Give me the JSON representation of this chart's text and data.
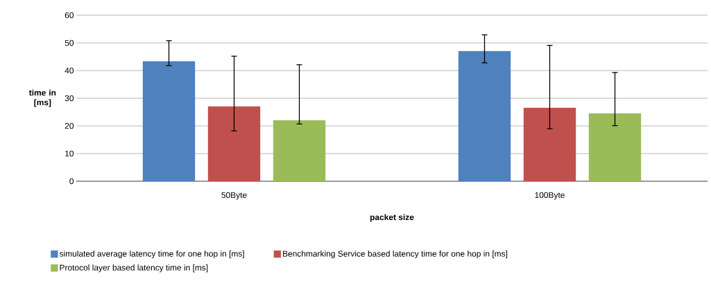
{
  "chart_data": {
    "type": "bar",
    "xlabel": "packet size",
    "ylabel": "time in [ms]",
    "categories": [
      "50Byte",
      "100Byte"
    ],
    "series": [
      {
        "name": "simulated average latency time for one hop in [ms]",
        "color": "#4f81bd",
        "values": [
          43.3,
          47
        ],
        "errors": [
          [
            41.8,
            50.8
          ],
          [
            42.8,
            52.9
          ]
        ]
      },
      {
        "name": "Benchmarking Service based latency time for one hop in [ms]",
        "color": "#c0504d",
        "values": [
          27,
          26.5
        ],
        "errors": [
          [
            18.2,
            45.2
          ],
          [
            19,
            49.1
          ]
        ]
      },
      {
        "name": "Protocol layer based latency time in [ms]",
        "color": "#9bbb59",
        "values": [
          22,
          24.5
        ],
        "errors": [
          [
            20.7,
            42.1
          ],
          [
            20.1,
            39.3
          ]
        ]
      }
    ],
    "ylim": [
      0,
      60
    ],
    "yticks": [
      0,
      10,
      20,
      30,
      40,
      50,
      60
    ],
    "grid": "y",
    "legend": "bottom"
  }
}
